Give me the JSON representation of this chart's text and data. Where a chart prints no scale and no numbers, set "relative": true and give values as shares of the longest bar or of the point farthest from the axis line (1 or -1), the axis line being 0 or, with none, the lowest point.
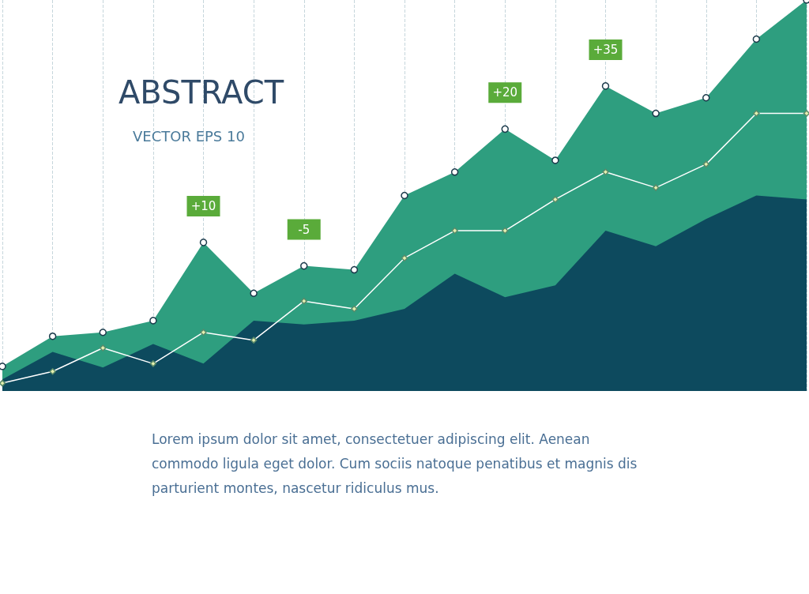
{
  "chart_data": {
    "type": "area",
    "title": "ABSTRACT",
    "subtitle": "VECTOR EPS 10",
    "relative": true,
    "grid": "x",
    "categories": [
      null,
      null,
      null,
      null,
      null,
      null,
      null,
      null,
      null,
      null,
      null,
      null,
      null,
      null,
      null,
      null,
      null
    ],
    "series": [
      {
        "color": "#2e9e7f",
        "marker": "circle",
        "values": [
          0.063,
          0.14,
          0.15,
          0.18,
          0.38,
          0.25,
          0.32,
          0.31,
          0.5,
          0.56,
          0.67,
          0.59,
          0.78,
          0.71,
          0.75,
          0.9,
          1
        ]
      },
      {
        "color": "#0d4a5e",
        "marker": "none",
        "values": [
          0.03,
          0.1,
          0.06,
          0.12,
          0.07,
          0.18,
          0.17,
          0.18,
          0.21,
          0.3,
          0.24,
          0.27,
          0.41,
          0.37,
          0.44,
          0.5,
          0.49
        ]
      },
      {
        "type": "line",
        "color": "#ffffff",
        "marker": "diamond",
        "values": [
          0.02,
          0.05,
          0.11,
          0.07,
          0.15,
          0.13,
          0.23,
          0.21,
          0.34,
          0.41,
          0.41,
          0.49,
          0.56,
          0.52,
          0.58,
          0.71,
          0.71
        ]
      }
    ],
    "annotations": [
      {
        "text": "+10",
        "y": 0.38
      },
      {
        "text": "-5",
        "y": 0.32
      },
      {
        "text": "+20",
        "y": 0.67
      },
      {
        "text": "+35",
        "y": 0.78
      },
      "Lorem ipsum dolor sit amet, consectetuer adipiscing elit. Aenean commodo ligula eget dolor. Cum sociis natoque penatibus et magnis dis parturient montes, nascetur ridiculus mus."
    ]
  }
}
